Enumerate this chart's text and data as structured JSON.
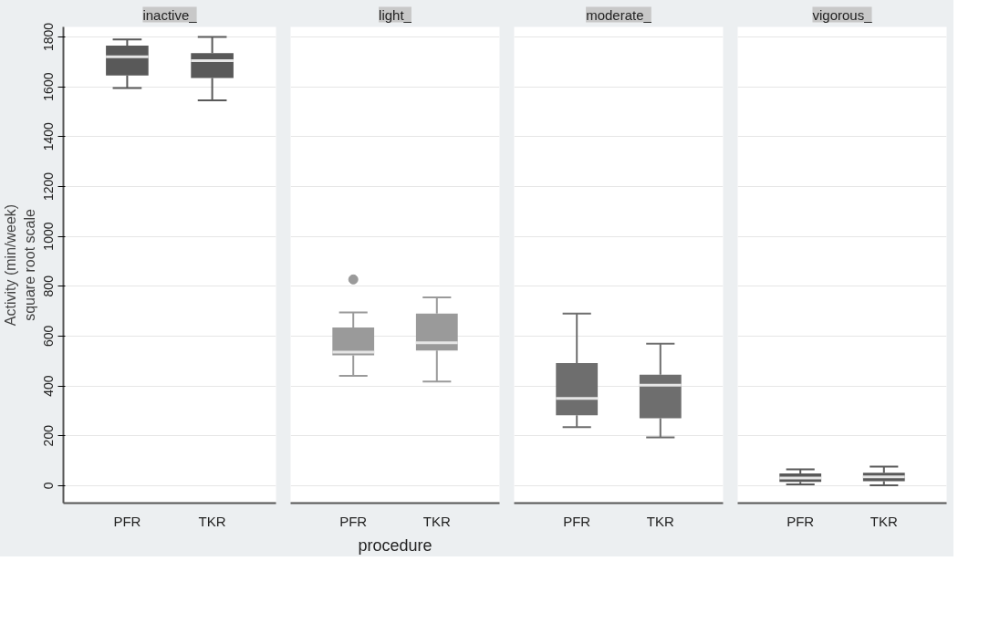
{
  "chart_data": [
    {
      "type": "box",
      "title": "inactive_",
      "ylabel": "Activity (min/week)\nsquare root scale",
      "categories": [
        "PFR",
        "TKR"
      ],
      "color": "#595959",
      "ylim": [
        -70,
        1840
      ],
      "yticks": [
        0,
        200,
        400,
        600,
        800,
        1000,
        1200,
        1400,
        1600,
        1800
      ],
      "grid": "y",
      "boxes": [
        {
          "low": 1595,
          "q1": 1645,
          "median": 1720,
          "q3": 1765,
          "high": 1790
        },
        {
          "low": 1545,
          "q1": 1635,
          "median": 1705,
          "q3": 1735,
          "high": 1800
        }
      ]
    },
    {
      "type": "box",
      "title": "light_",
      "xlabel": "procedure",
      "categories": [
        "PFR",
        "TKR"
      ],
      "color": "#9a9a9a",
      "ylim": [
        -70,
        1840
      ],
      "yticks": [
        0,
        200,
        400,
        600,
        800,
        1000,
        1200,
        1400,
        1600,
        1800
      ],
      "grid": "y",
      "tick_labels": "x",
      "boxes": [
        {
          "low": 440,
          "q1": 523,
          "median": 536,
          "q3": 634,
          "high": 695,
          "outliers": [
            827
          ]
        },
        {
          "low": 418,
          "q1": 542,
          "median": 573,
          "q3": 690,
          "high": 755
        }
      ]
    },
    {
      "type": "box",
      "title": "moderate_",
      "categories": [
        "PFR",
        "TKR"
      ],
      "color": "#6e6e6e",
      "ylim": [
        -70,
        1840
      ],
      "yticks": [
        0,
        200,
        400,
        600,
        800,
        1000,
        1200,
        1400,
        1600,
        1800
      ],
      "grid": "y",
      "tick_labels": "x",
      "boxes": [
        {
          "low": 235,
          "q1": 282,
          "median": 350,
          "q3": 492,
          "high": 690
        },
        {
          "low": 193,
          "q1": 270,
          "median": 403,
          "q3": 445,
          "high": 569
        }
      ]
    },
    {
      "type": "box",
      "title": "vigorous_",
      "categories": [
        "PFR",
        "TKR"
      ],
      "color": "#595959",
      "ylim": [
        -70,
        1840
      ],
      "yticks": [
        0,
        200,
        400,
        600,
        800,
        1000,
        1200,
        1400,
        1600,
        1800
      ],
      "grid": "y",
      "tick_labels": "x",
      "boxes": [
        {
          "low": 5,
          "q1": 15,
          "median": 31,
          "q3": 49,
          "high": 65
        },
        {
          "low": 1,
          "q1": 18,
          "median": 35,
          "q3": 52,
          "high": 76
        }
      ]
    }
  ]
}
